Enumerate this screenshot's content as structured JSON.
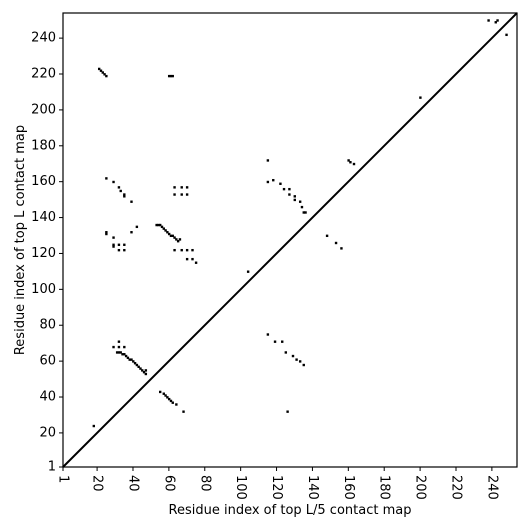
{
  "chart_data": {
    "type": "contact_map",
    "xlabel": "Residue index of top L/5 contact map",
    "ylabel": "Residue index of top L contact map",
    "xlim": [
      1,
      254
    ],
    "ylim": [
      1,
      254
    ],
    "xticks": [
      1,
      20,
      40,
      60,
      80,
      100,
      120,
      140,
      160,
      180,
      200,
      220,
      240
    ],
    "yticks": [
      1,
      20,
      40,
      60,
      80,
      100,
      120,
      140,
      160,
      180,
      200,
      220,
      240
    ],
    "color": "#000000",
    "x": [
      21,
      22,
      23,
      24,
      25,
      60,
      61,
      62,
      25,
      29,
      32,
      35,
      35,
      39,
      33,
      25,
      25,
      29,
      29,
      29,
      32,
      35,
      35,
      32,
      39,
      42,
      53,
      54,
      55,
      56,
      57,
      58,
      59,
      60,
      61,
      62,
      63,
      64,
      65,
      66,
      63,
      67,
      70,
      70,
      73,
      75,
      73,
      63,
      63,
      67,
      70,
      67,
      70,
      104,
      115,
      115,
      118,
      122,
      124,
      127,
      127,
      130,
      130,
      133,
      134,
      135,
      136,
      148,
      153,
      156,
      160,
      161,
      163,
      200,
      238,
      242,
      243,
      248,
      18,
      31,
      32,
      33,
      34,
      35,
      36,
      37,
      38,
      39,
      40,
      41,
      42,
      43,
      44,
      45,
      46,
      47,
      47,
      32,
      35,
      29,
      32,
      55,
      57,
      58,
      59,
      60,
      61,
      62,
      64,
      68,
      115,
      119,
      123,
      125,
      129,
      131,
      133,
      135,
      126
    ],
    "values": [
      223,
      222,
      221,
      220,
      219,
      219,
      219,
      219,
      162,
      160,
      157,
      153,
      152,
      149,
      155,
      132,
      131,
      129,
      125,
      124,
      125,
      125,
      122,
      122,
      132,
      135,
      136,
      136,
      136,
      135,
      134,
      133,
      132,
      131,
      130,
      130,
      129,
      128,
      127,
      128,
      122,
      122,
      122,
      117,
      117,
      115,
      122,
      157,
      153,
      153,
      153,
      157,
      157,
      110,
      172,
      160,
      161,
      159,
      156,
      156,
      153,
      152,
      150,
      149,
      146,
      143,
      143,
      130,
      126,
      123,
      172,
      171,
      170,
      207,
      250,
      249,
      250,
      242,
      24,
      65,
      65,
      65,
      64,
      64,
      63,
      62,
      61,
      61,
      60,
      59,
      58,
      57,
      56,
      55,
      54,
      53,
      55,
      68,
      68,
      68,
      71,
      43,
      42,
      41,
      40,
      39,
      38,
      37,
      36,
      32,
      75,
      71,
      71,
      65,
      63,
      61,
      60,
      58,
      32
    ]
  }
}
